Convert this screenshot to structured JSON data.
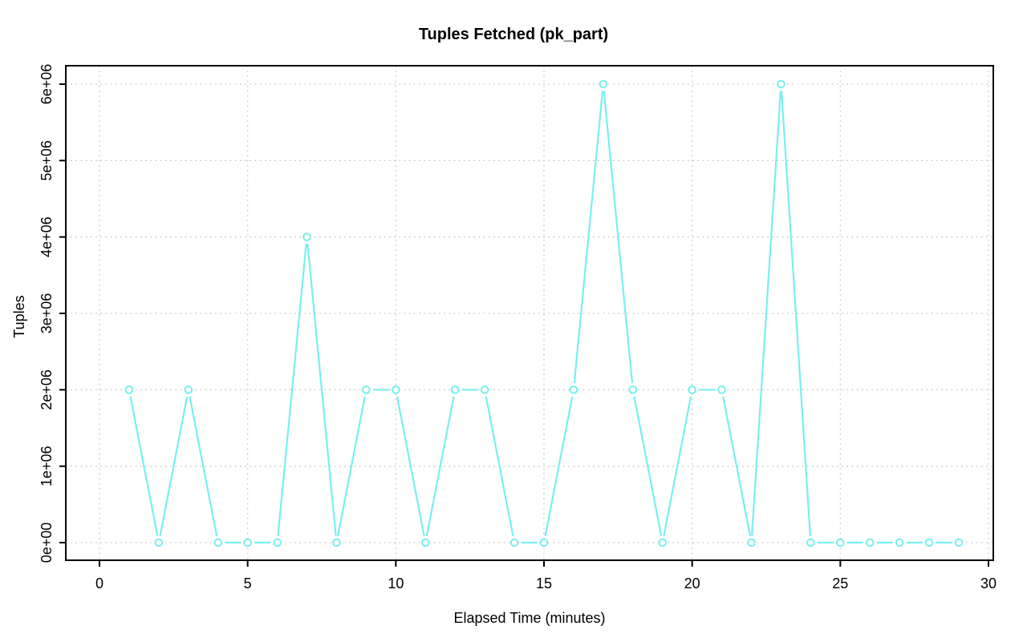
{
  "chart_data": {
    "type": "line",
    "title": "Tuples Fetched (pk_part)",
    "xlabel": "Elapsed Time (minutes)",
    "ylabel": "Tuples",
    "x": [
      1,
      2,
      3,
      4,
      5,
      6,
      7,
      8,
      9,
      10,
      11,
      12,
      13,
      14,
      15,
      16,
      17,
      18,
      19,
      20,
      21,
      22,
      23,
      24,
      25,
      26,
      27,
      28,
      29
    ],
    "y": [
      2000000,
      0,
      2000000,
      0,
      0,
      0,
      4000000,
      0,
      2000000,
      2000000,
      0,
      2000000,
      2000000,
      0,
      0,
      2000000,
      6000000,
      2000000,
      0,
      2000000,
      2000000,
      0,
      6000000,
      0,
      0,
      0,
      0,
      0,
      0
    ],
    "x_ticks": {
      "values": [
        0,
        5,
        10,
        15,
        20,
        25,
        30
      ],
      "labels": [
        "0",
        "5",
        "10",
        "15",
        "20",
        "25",
        "30"
      ]
    },
    "y_ticks": {
      "values": [
        0,
        1000000,
        2000000,
        3000000,
        4000000,
        5000000,
        6000000
      ],
      "labels": [
        "0e+00",
        "1e+06",
        "2e+06",
        "3e+06",
        "4e+06",
        "5e+06",
        "6e+06"
      ]
    },
    "xlim": [
      0,
      30
    ],
    "ylim": [
      0,
      6000000
    ],
    "grid": true,
    "legend": null,
    "line_type": "b-gapped-segments",
    "marker": "open-circle",
    "colors": {
      "series": "#79EFEF",
      "grid": "#C4C4C4",
      "axis": "#000000",
      "background": "#FFFFFF"
    }
  }
}
